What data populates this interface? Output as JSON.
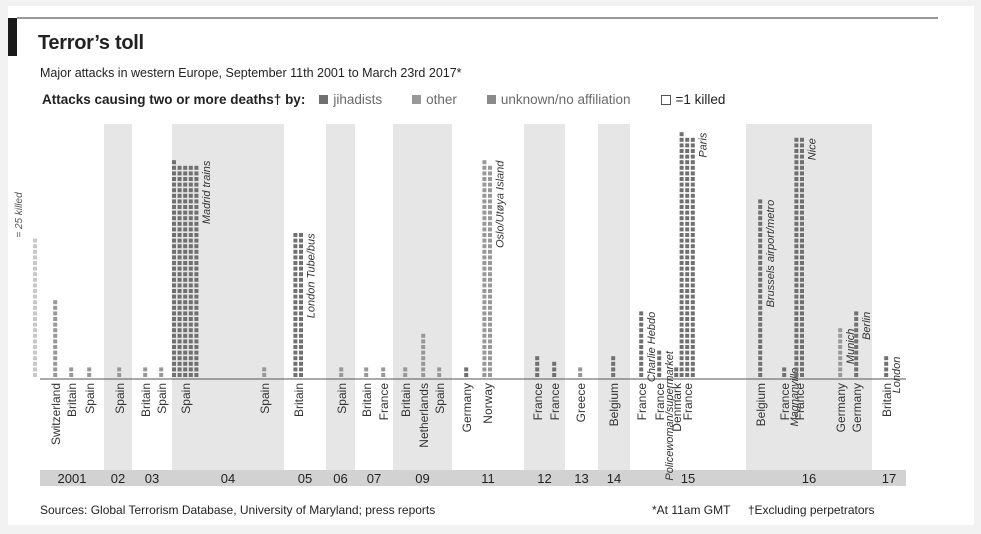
{
  "title": "Terror’s toll",
  "subtitle": "Major attacks in western Europe, September 11th 2001 to March 23rd 2017*",
  "legend": {
    "lead": "Attacks causing two or more deaths† by:",
    "jihadists": "jihadists",
    "other": "other",
    "unknown": "unknown/no affiliation",
    "key": "=1 killed"
  },
  "scale_note": "= 25 killed",
  "footer": {
    "sources": "Sources: Global Terrorism Database, University of Maryland; press reports",
    "note_time": "*At 11am GMT",
    "note_perp": "†Excluding perpetrators"
  },
  "colors": {
    "jihadists": "#707070",
    "other": "#989898",
    "unknown": "#8a8a8a",
    "year_bg": "#d2d2d2",
    "panel_bg": "#e6e6e6",
    "band_bg": "#ffffff"
  },
  "chart_data": {
    "type": "bar",
    "unit": "deaths (each square = 1 killed)",
    "years": [
      "2001",
      "02",
      "03",
      "04",
      "05",
      "06",
      "07",
      "09",
      "11",
      "12",
      "13",
      "14",
      "15",
      "16",
      "17"
    ],
    "attacks": [
      {
        "year": "2001",
        "country": "Switzerland",
        "deaths": 14,
        "affiliation": "other"
      },
      {
        "year": "2001",
        "country": "Britain",
        "deaths": 2,
        "affiliation": "other"
      },
      {
        "year": "2001",
        "country": "Spain",
        "deaths": 2,
        "affiliation": "other"
      },
      {
        "year": "02",
        "country": "Spain",
        "deaths": 2,
        "affiliation": "other"
      },
      {
        "year": "03",
        "country": "Britain",
        "deaths": 2,
        "affiliation": "other"
      },
      {
        "year": "03",
        "country": "Spain",
        "deaths": 2,
        "affiliation": "other"
      },
      {
        "year": "04",
        "country": "Spain",
        "deaths": 191,
        "affiliation": "jihadists",
        "label": "Madrid trains"
      },
      {
        "year": "04",
        "country": "Spain",
        "deaths": 2,
        "affiliation": "other"
      },
      {
        "year": "05",
        "country": "Britain",
        "deaths": 52,
        "affiliation": "jihadists",
        "label": "London Tube/bus"
      },
      {
        "year": "06",
        "country": "Spain",
        "deaths": 2,
        "affiliation": "other"
      },
      {
        "year": "07",
        "country": "Britain",
        "deaths": 2,
        "affiliation": "other"
      },
      {
        "year": "07",
        "country": "France",
        "deaths": 2,
        "affiliation": "other"
      },
      {
        "year": "09",
        "country": "Britain",
        "deaths": 2,
        "affiliation": "other"
      },
      {
        "year": "09",
        "country": "Netherlands",
        "deaths": 8,
        "affiliation": "other"
      },
      {
        "year": "09",
        "country": "Spain",
        "deaths": 2,
        "affiliation": "other"
      },
      {
        "year": "11",
        "country": "Germany",
        "deaths": 2,
        "affiliation": "jihadists"
      },
      {
        "year": "11",
        "country": "Norway",
        "deaths": 77,
        "affiliation": "other",
        "label": "Oslo/Utøya Island"
      },
      {
        "year": "12",
        "country": "France",
        "deaths": 4,
        "affiliation": "jihadists"
      },
      {
        "year": "12",
        "country": "France",
        "deaths": 3,
        "affiliation": "jihadists"
      },
      {
        "year": "13",
        "country": "Greece",
        "deaths": 2,
        "affiliation": "other"
      },
      {
        "year": "14",
        "country": "Belgium",
        "deaths": 4,
        "affiliation": "jihadists"
      },
      {
        "year": "15",
        "country": "France",
        "deaths": 12,
        "affiliation": "jihadists",
        "label": "Charlie Hebdo"
      },
      {
        "year": "15",
        "country": "France",
        "deaths": 5,
        "affiliation": "jihadists",
        "label": "Policewoman/supermarket"
      },
      {
        "year": "15",
        "country": "Denmark",
        "deaths": 2,
        "affiliation": "jihadists"
      },
      {
        "year": "15",
        "country": "France",
        "deaths": 130,
        "affiliation": "jihadists",
        "label": "Paris"
      },
      {
        "year": "16",
        "country": "Belgium",
        "deaths": 32,
        "affiliation": "jihadists",
        "label": "Brussels airport/metro"
      },
      {
        "year": "16",
        "country": "France",
        "deaths": 2,
        "affiliation": "jihadists",
        "label": "Magnanville"
      },
      {
        "year": "16",
        "country": "France",
        "deaths": 86,
        "affiliation": "jihadists",
        "label": "Nice"
      },
      {
        "year": "16",
        "country": "Germany",
        "deaths": 9,
        "affiliation": "other",
        "label": "Munich"
      },
      {
        "year": "16",
        "country": "Germany",
        "deaths": 12,
        "affiliation": "jihadists",
        "label": "Berlin"
      },
      {
        "year": "17",
        "country": "Britain",
        "deaths": 4,
        "affiliation": "jihadists",
        "label": "London"
      }
    ]
  }
}
